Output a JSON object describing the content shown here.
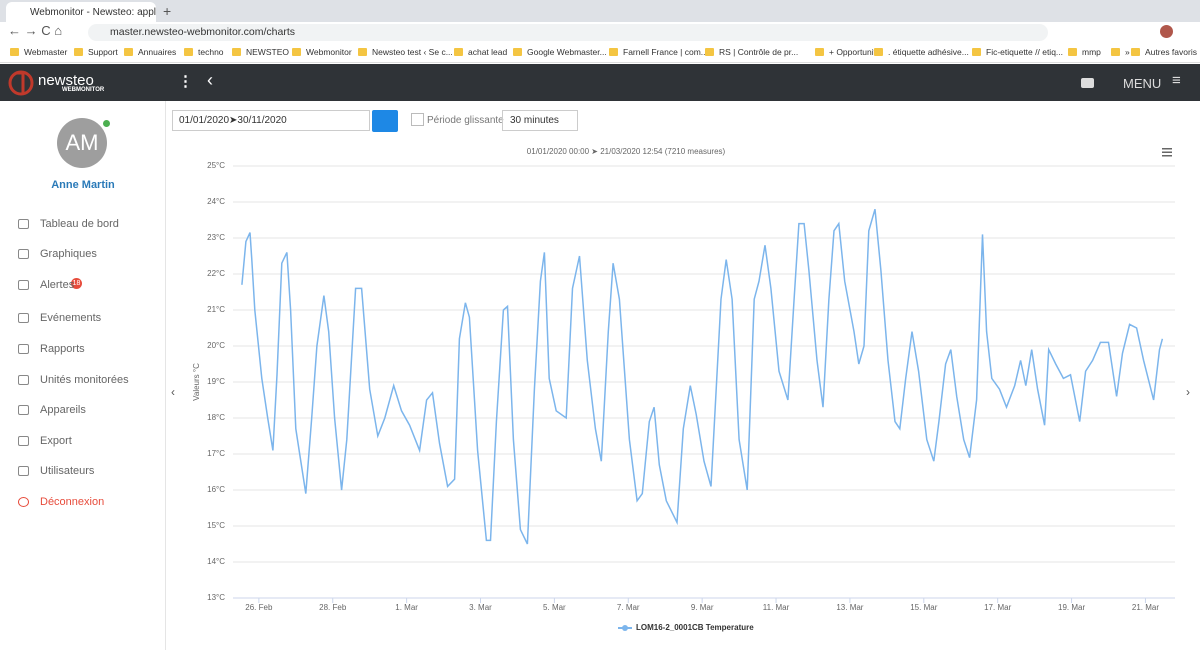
{
  "browser": {
    "tab_title": "Webmonitor - Newsteo: applicati",
    "url": "master.newsteo-webmonitor.com/charts",
    "bookmarks": [
      "Webmaster",
      "Support",
      "Annuaires",
      "techno",
      "NEWSTEO",
      "Webmonitor",
      "Newsteo test ‹ Se c...",
      "achat lead",
      "Google Webmaster...",
      "Farnell France | com...",
      "RS | Contrôle de pr...",
      "+ Opportunité",
      ". étiquette adhésive...",
      "Fic-etiquette // etiq...",
      "mmp",
      "»",
      "Autres favoris"
    ]
  },
  "header": {
    "logo": "newsteo",
    "logo_sub": "WEBMONITOR",
    "menu": "MENU"
  },
  "sidebar": {
    "initials": "AM",
    "user": "Anne Martin",
    "alert_badge": "18",
    "items": [
      "Tableau de bord",
      "Graphiques",
      "Alertes",
      "Evénements",
      "Rapports",
      "Unités monitorées",
      "Appareils",
      "Export",
      "Utilisateurs",
      "Déconnexion"
    ]
  },
  "toolbar": {
    "date_range": "01/01/2020➤30/11/2020",
    "sliding": "Période glissante",
    "interval": "30 minutes"
  },
  "chart_data": {
    "type": "line",
    "subtitle": "01/01/2020 00:00 ➤ 21/03/2020 12:54 (7210 measures)",
    "y_label": "Valeurs °C",
    "x": [
      56.54,
      56.65,
      56.76,
      56.81,
      56.89,
      57.08,
      57.24,
      57.38,
      57.49,
      57.62,
      57.76,
      57.86,
      58.0,
      58.27,
      58.43,
      58.57,
      58.76,
      58.89,
      59.05,
      59.24,
      59.38,
      59.62,
      59.78,
      60.0,
      60.22,
      60.41,
      60.65,
      60.86,
      61.08,
      61.35,
      61.54,
      61.7,
      61.89,
      62.11,
      62.3,
      62.43,
      62.59,
      62.7,
      62.92,
      63.16,
      63.27,
      63.43,
      63.62,
      63.73,
      63.89,
      64.08,
      64.27,
      64.46,
      64.62,
      64.73,
      64.86,
      65.05,
      65.32,
      65.49,
      65.68,
      65.89,
      66.11,
      66.27,
      66.46,
      66.59,
      66.76,
      67.03,
      67.24,
      67.38,
      67.57,
      67.7,
      67.84,
      68.03,
      68.32,
      68.49,
      68.68,
      68.84,
      69.05,
      69.24,
      69.51,
      69.65,
      69.81,
      70.0,
      70.22,
      70.41,
      70.54,
      70.7,
      70.86,
      71.08,
      71.32,
      71.49,
      71.62,
      71.76,
      71.89,
      72.11,
      72.27,
      72.43,
      72.57,
      72.7,
      72.86,
      73.11,
      73.24,
      73.38,
      73.51,
      73.68,
      73.84,
      74.03,
      74.22,
      74.35,
      74.51,
      74.68,
      74.86,
      75.08,
      75.27,
      75.41,
      75.59,
      75.73,
      75.89,
      76.08,
      76.24,
      76.43,
      76.59,
      76.7,
      76.84,
      77.05,
      77.24,
      77.46,
      77.62,
      77.76,
      77.92,
      78.08,
      78.27,
      78.38,
      78.57,
      78.78,
      78.97,
      79.22,
      79.38,
      79.57,
      79.78,
      80.0,
      80.22,
      80.38,
      80.57,
      80.76,
      80.95,
      81.22,
      81.38,
      81.46
    ],
    "series": [
      {
        "name": "LOM16-2_0001CB Temperature",
        "color": "#7cb5ec",
        "values": [
          21.7,
          22.9,
          23.15,
          22.4,
          21.0,
          19.1,
          18.0,
          17.1,
          19.2,
          22.3,
          22.6,
          21.0,
          17.7,
          15.9,
          18.0,
          20.0,
          21.4,
          20.4,
          18.0,
          16.0,
          17.4,
          21.6,
          21.6,
          18.8,
          17.5,
          18.0,
          18.9,
          18.2,
          17.8,
          17.1,
          18.5,
          18.7,
          17.3,
          16.1,
          16.3,
          20.2,
          21.2,
          20.8,
          17.1,
          14.6,
          14.6,
          17.9,
          21.0,
          21.1,
          17.4,
          14.9,
          14.5,
          18.8,
          21.8,
          22.6,
          19.1,
          18.2,
          18.0,
          21.6,
          22.5,
          19.6,
          17.7,
          16.8,
          20.4,
          22.3,
          21.3,
          17.4,
          15.7,
          15.9,
          17.9,
          18.3,
          16.7,
          15.7,
          15.1,
          17.7,
          18.9,
          18.1,
          16.8,
          16.1,
          21.3,
          22.4,
          21.3,
          17.4,
          16.0,
          21.3,
          21.8,
          22.8,
          21.6,
          19.3,
          18.5,
          21.3,
          23.4,
          23.4,
          22.1,
          19.6,
          18.3,
          21.3,
          23.2,
          23.4,
          21.8,
          20.4,
          19.5,
          20.0,
          23.2,
          23.8,
          22.1,
          19.6,
          17.9,
          17.7,
          19.1,
          20.4,
          19.3,
          17.4,
          16.8,
          17.9,
          19.5,
          19.9,
          18.6,
          17.4,
          16.9,
          18.5,
          23.1,
          20.4,
          19.1,
          18.8,
          18.3,
          18.9,
          19.6,
          18.9,
          19.9,
          18.8,
          17.8,
          19.9,
          19.5,
          19.1,
          19.2,
          17.9,
          19.3,
          19.6,
          20.1,
          20.1,
          18.6,
          19.8,
          20.6,
          20.5,
          19.6,
          18.5,
          19.9,
          20.2
        ]
      }
    ],
    "xlim": [
      56.3,
      81.8
    ],
    "xticks": [
      {
        "value": 57,
        "label": "26. Feb"
      },
      {
        "value": 59,
        "label": "28. Feb"
      },
      {
        "value": 61,
        "label": "1. Mar"
      },
      {
        "value": 63,
        "label": "3. Mar"
      },
      {
        "value": 65,
        "label": "5. Mar"
      },
      {
        "value": 67,
        "label": "7. Mar"
      },
      {
        "value": 69,
        "label": "9. Mar"
      },
      {
        "value": 71,
        "label": "11. Mar"
      },
      {
        "value": 73,
        "label": "13. Mar"
      },
      {
        "value": 75,
        "label": "15. Mar"
      },
      {
        "value": 77,
        "label": "17. Mar"
      },
      {
        "value": 79,
        "label": "19. Mar"
      },
      {
        "value": 81,
        "label": "21. Mar"
      }
    ],
    "ylim": [
      13,
      25
    ],
    "yticks": [
      {
        "value": 13,
        "label": "13°C"
      },
      {
        "value": 14,
        "label": "14°C"
      },
      {
        "value": 15,
        "label": "15°C"
      },
      {
        "value": 16,
        "label": "16°C"
      },
      {
        "value": 17,
        "label": "17°C"
      },
      {
        "value": 18,
        "label": "18°C"
      },
      {
        "value": 19,
        "label": "19°C"
      },
      {
        "value": 20,
        "label": "20°C"
      },
      {
        "value": 21,
        "label": "21°C"
      },
      {
        "value": 22,
        "label": "22°C"
      },
      {
        "value": 23,
        "label": "23°C"
      },
      {
        "value": 24,
        "label": "24°C"
      },
      {
        "value": 25,
        "label": "25°C"
      }
    ],
    "grid": true
  }
}
